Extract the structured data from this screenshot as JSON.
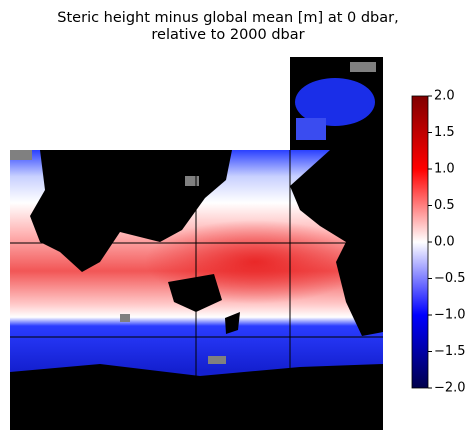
{
  "title_lines": [
    "Steric height minus global mean [m] at 0 dbar,",
    "relative to 2000 dbar"
  ],
  "colorbar": {
    "lim": [
      -2,
      2
    ],
    "ticks": [
      {
        "value": 2,
        "label": "2.0"
      },
      {
        "value": 1.5,
        "label": "1.5"
      },
      {
        "value": 1,
        "label": "1.0"
      },
      {
        "value": 0.5,
        "label": "0.5"
      },
      {
        "value": 0,
        "label": "0.0"
      },
      {
        "value": -0.5,
        "label": "−0.5"
      },
      {
        "value": -1,
        "label": "−1.0"
      },
      {
        "value": -1.5,
        "label": "−1.5"
      },
      {
        "value": -2,
        "label": "−2.0"
      }
    ]
  }
}
